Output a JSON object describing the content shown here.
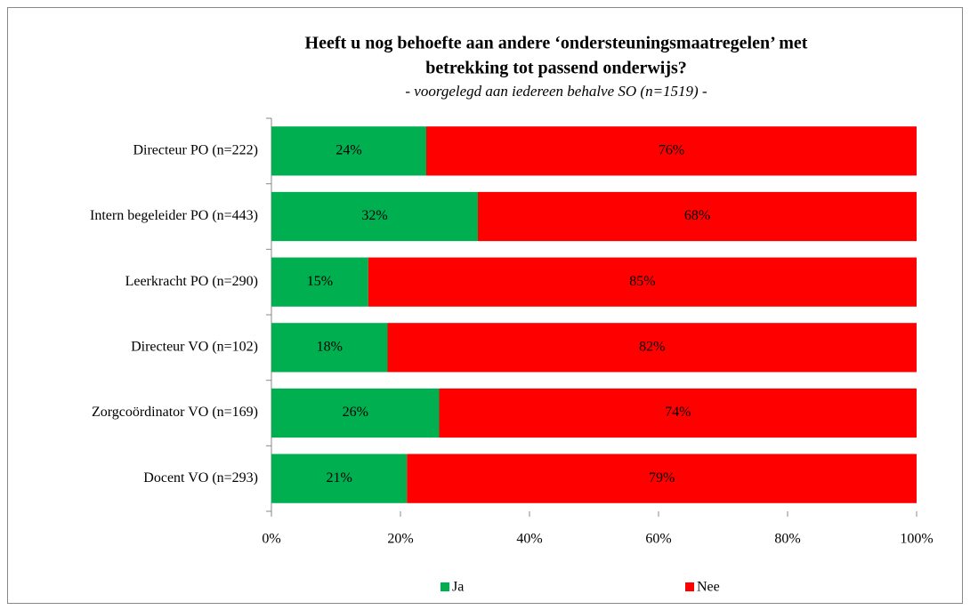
{
  "chart_data": {
    "type": "stacked-bar-horizontal",
    "title": [
      "Heeft u nog behoefte aan andere ‘ondersteuningsmaatregelen’ met",
      "betrekking tot passend onderwijs?"
    ],
    "subtitle": "- voorgelegd aan iedereen behalve SO (n=1519) -",
    "categories": [
      "Directeur PO (n=222)",
      "Intern begeleider PO (n=443)",
      "Leerkracht PO (n=290)",
      "Directeur VO (n=102)",
      "Zorgcoördinator VO (n=169)",
      "Docent VO (n=293)"
    ],
    "series": [
      {
        "name": "Ja",
        "color": "#00b050",
        "values": [
          24,
          32,
          15,
          18,
          26,
          21
        ],
        "value_labels": [
          "24%",
          "32%",
          "15%",
          "18%",
          "26%",
          "21%"
        ]
      },
      {
        "name": "Nee",
        "color": "#ff0000",
        "values": [
          76,
          68,
          85,
          82,
          74,
          79
        ],
        "value_labels": [
          "76%",
          "68%",
          "85%",
          "82%",
          "74%",
          "79%"
        ]
      }
    ],
    "xlim": [
      0,
      100
    ],
    "xticks": [
      {
        "value": 0,
        "label": "0%"
      },
      {
        "value": 20,
        "label": "20%"
      },
      {
        "value": 40,
        "label": "40%"
      },
      {
        "value": 60,
        "label": "60%"
      },
      {
        "value": 80,
        "label": "80%"
      },
      {
        "value": 100,
        "label": "100%"
      }
    ],
    "legend": "bottom"
  }
}
